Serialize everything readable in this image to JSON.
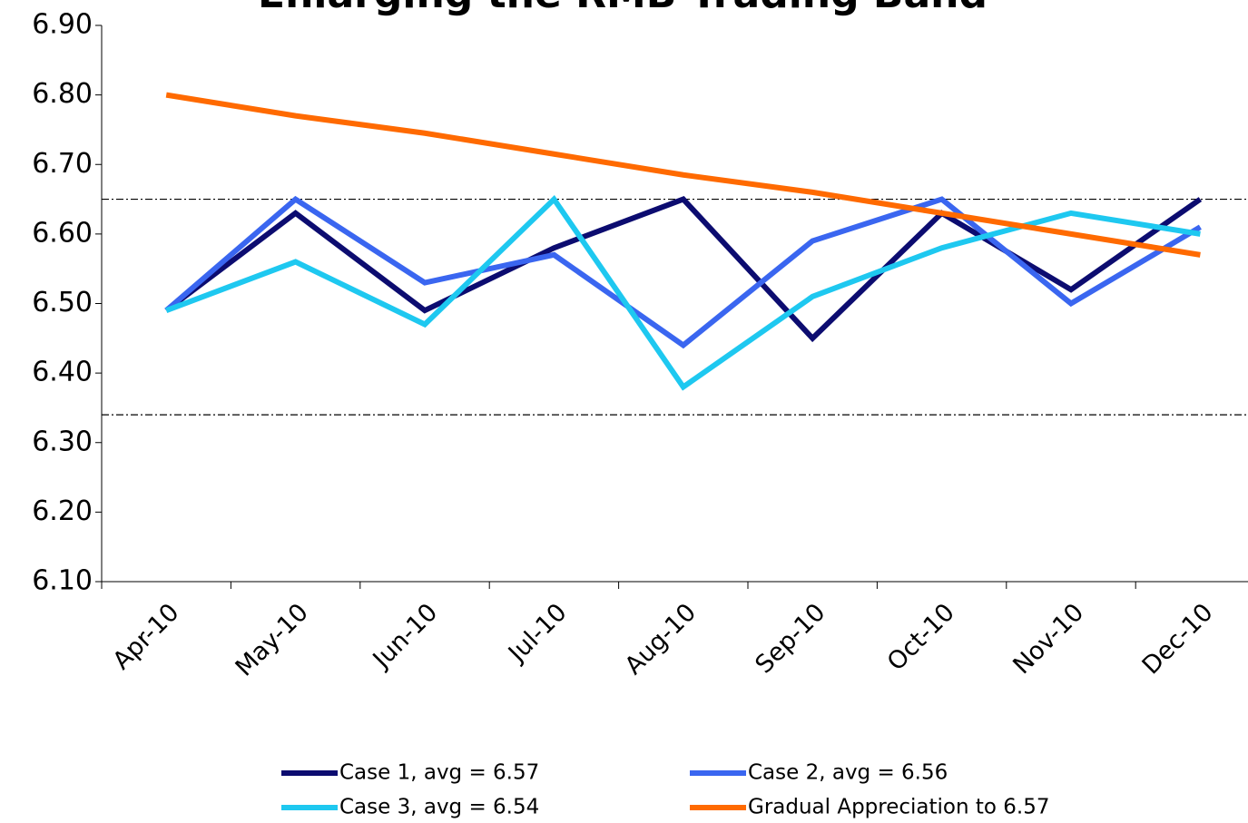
{
  "chart_data": {
    "type": "line",
    "title": "Enlarging the RMB Trading Band",
    "categories": [
      "Apr-10",
      "May-10",
      "Jun-10",
      "Jul-10",
      "Aug-10",
      "Sep-10",
      "Oct-10",
      "Nov-10",
      "Dec-10"
    ],
    "series": [
      {
        "name": "Case 1, avg = 6.57",
        "color": "#0c0c70",
        "values": [
          6.49,
          6.63,
          6.49,
          6.58,
          6.65,
          6.45,
          6.63,
          6.52,
          6.65
        ]
      },
      {
        "name": "Case 2, avg = 6.56",
        "color": "#3a66f0",
        "values": [
          6.49,
          6.65,
          6.53,
          6.57,
          6.44,
          6.59,
          6.65,
          6.5,
          6.61
        ]
      },
      {
        "name": "Case 3, avg = 6.54",
        "color": "#1ec8f0",
        "values": [
          6.49,
          6.56,
          6.47,
          6.65,
          6.38,
          6.51,
          6.58,
          6.63,
          6.6
        ]
      },
      {
        "name": "Gradual Appreciation to 6.57",
        "color": "#ff6a00",
        "values": [
          6.8,
          6.77,
          6.745,
          6.715,
          6.685,
          6.66,
          6.63,
          6.6,
          6.57
        ]
      }
    ],
    "reference_lines": [
      6.65,
      6.34
    ],
    "ylim": [
      6.1,
      6.9
    ],
    "yticks": [
      {
        "value": 6.1,
        "label": "6.10"
      },
      {
        "value": 6.2,
        "label": "6.20"
      },
      {
        "value": 6.3,
        "label": "6.30"
      },
      {
        "value": 6.4,
        "label": "6.40"
      },
      {
        "value": 6.5,
        "label": "6.50"
      },
      {
        "value": 6.6,
        "label": "6.60"
      },
      {
        "value": 6.7,
        "label": "6.70"
      },
      {
        "value": 6.8,
        "label": "6.80"
      },
      {
        "value": 6.9,
        "label": "6.90"
      }
    ],
    "legend": "bottom"
  }
}
